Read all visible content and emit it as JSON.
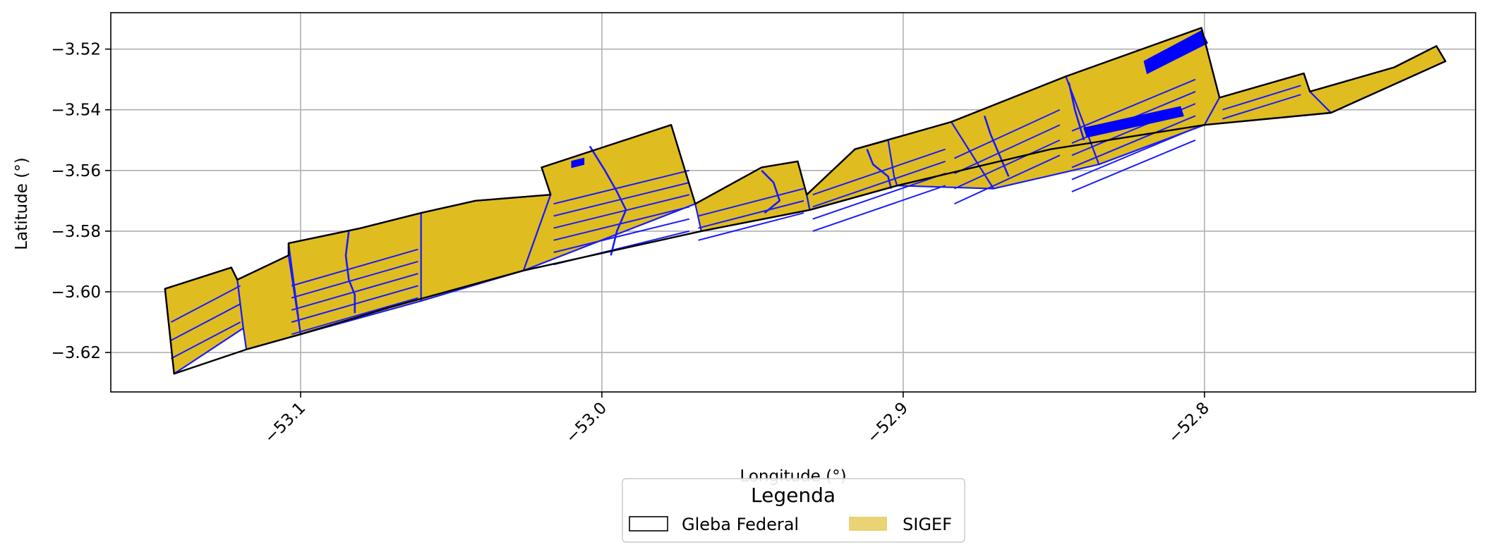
{
  "map": {
    "xlabel": "Longitude (°)",
    "ylabel": "Latitude (°)",
    "x_ticks": [
      "−53.1",
      "−53.0",
      "−52.9",
      "−52.8"
    ],
    "x_tick_values": [
      -53.1,
      -53.0,
      -52.9,
      -52.8
    ],
    "y_ticks": [
      "−3.52",
      "−3.54",
      "−3.56",
      "−3.58",
      "−3.60",
      "−3.62"
    ],
    "y_tick_values": [
      -3.52,
      -3.54,
      -3.56,
      -3.58,
      -3.6,
      -3.62
    ],
    "xlim": [
      -53.163,
      -52.71
    ],
    "ylim": [
      -3.633,
      -3.508
    ],
    "grid": true,
    "colors": {
      "gleba_edge": "#000000",
      "sigef_fill": "#dfbd20",
      "sigef_legend_fill": "#e9d374",
      "parcel_lines": "#1a1aff",
      "highlight_fill": "#0000ff",
      "grid": "#b0b0b0"
    }
  },
  "legend": {
    "title": "Legenda",
    "placement": "bottom-center",
    "items": [
      {
        "label": "Gleba Federal",
        "style": "outline"
      },
      {
        "label": "SIGEF",
        "style": "fill"
      }
    ]
  },
  "gleba_outline": [
    [
      -53.145,
      -3.599
    ],
    [
      -53.123,
      -3.592
    ],
    [
      -53.121,
      -3.596
    ],
    [
      -53.104,
      -3.588
    ],
    [
      -53.104,
      -3.584
    ],
    [
      -53.08,
      -3.579
    ],
    [
      -53.06,
      -3.574
    ],
    [
      -53.042,
      -3.57
    ],
    [
      -53.017,
      -3.568
    ],
    [
      -53.02,
      -3.559
    ],
    [
      -52.977,
      -3.545
    ],
    [
      -52.969,
      -3.571
    ],
    [
      -52.947,
      -3.559
    ],
    [
      -52.935,
      -3.557
    ],
    [
      -52.932,
      -3.568
    ],
    [
      -52.916,
      -3.553
    ],
    [
      -52.884,
      -3.544
    ],
    [
      -52.846,
      -3.529
    ],
    [
      -52.801,
      -3.513
    ],
    [
      -52.795,
      -3.536
    ],
    [
      -52.767,
      -3.528
    ],
    [
      -52.765,
      -3.534
    ],
    [
      -52.737,
      -3.526
    ],
    [
      -52.723,
      -3.519
    ],
    [
      -52.72,
      -3.524
    ],
    [
      -52.758,
      -3.541
    ],
    [
      -52.8,
      -3.545
    ],
    [
      -52.851,
      -3.553
    ],
    [
      -52.902,
      -3.565
    ],
    [
      -52.931,
      -3.573
    ],
    [
      -52.967,
      -3.58
    ],
    [
      -53.026,
      -3.593
    ],
    [
      -53.07,
      -3.605
    ],
    [
      -53.1,
      -3.614
    ],
    [
      -53.118,
      -3.619
    ],
    [
      -53.142,
      -3.627
    ]
  ],
  "sigef_region_count": 12,
  "highlight_region_count": 3
}
